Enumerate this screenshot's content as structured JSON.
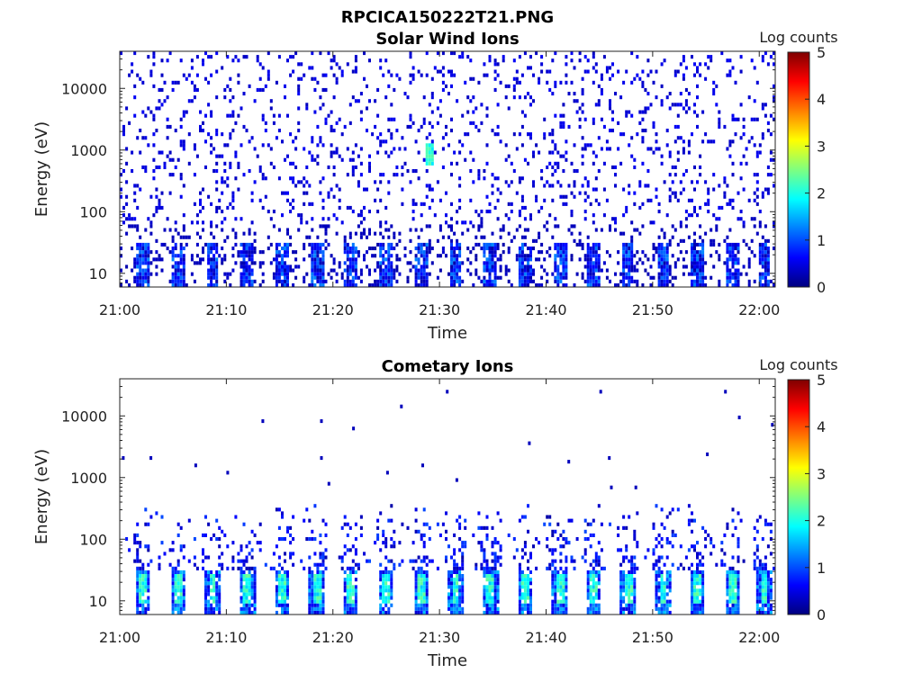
{
  "figure": {
    "suptitle": "RPCICA150222T21.PNG"
  },
  "colors": {
    "jet": [
      "#00007f",
      "#0000ff",
      "#007fff",
      "#00ffff",
      "#7fff7f",
      "#ffff00",
      "#ff7f00",
      "#ff0000",
      "#7f0000"
    ],
    "axis": "#222222",
    "background": "#ffffff"
  },
  "chart_data": [
    {
      "type": "heatmap",
      "title": "Solar Wind Ions",
      "xlabel": "Time",
      "ylabel": "Energy (eV)",
      "colorbar_label": "Log counts",
      "colorbar_ticks": [
        "0",
        "1",
        "2",
        "3",
        "4",
        "5"
      ],
      "colorbar_range": [
        0,
        5
      ],
      "x_tick_labels": [
        "21:00",
        "21:10",
        "21:20",
        "21:30",
        "21:40",
        "21:50",
        "22:00"
      ],
      "x_tick_minutes": [
        0,
        10,
        20,
        30,
        40,
        50,
        60
      ],
      "xlim_minutes": [
        0,
        61.5
      ],
      "y_tick_labels": [
        "10",
        "100",
        "1000",
        "10000"
      ],
      "y_tick_values": [
        10,
        100,
        1000,
        10000
      ],
      "ylim": [
        6,
        40000
      ],
      "y_scale": "log",
      "low_energy_bursts_minutes": [
        2.2,
        5.5,
        8.7,
        12.0,
        15.3,
        18.5,
        21.7,
        25.0,
        28.3,
        31.5,
        34.8,
        38.0,
        41.3,
        44.5,
        47.7,
        51.0,
        54.2,
        57.5,
        60.5
      ],
      "background_noise_log_counts": 0.3,
      "burst_peak_log_counts": 1.3,
      "highlight": {
        "minute": 29.0,
        "energy_range": [
          500,
          1200
        ],
        "log_counts": 2.3
      }
    },
    {
      "type": "heatmap",
      "title": "Cometary Ions",
      "xlabel": "Time",
      "ylabel": "Energy (eV)",
      "colorbar_label": "Log counts",
      "colorbar_ticks": [
        "0",
        "1",
        "2",
        "3",
        "4",
        "5"
      ],
      "colorbar_range": [
        0,
        5
      ],
      "x_tick_labels": [
        "21:00",
        "21:10",
        "21:20",
        "21:30",
        "21:40",
        "21:50",
        "22:00"
      ],
      "x_tick_minutes": [
        0,
        10,
        20,
        30,
        40,
        50,
        60
      ],
      "xlim_minutes": [
        0,
        61.5
      ],
      "y_tick_labels": [
        "10",
        "100",
        "1000",
        "10000"
      ],
      "y_tick_values": [
        10,
        100,
        1000,
        10000
      ],
      "ylim": [
        6,
        40000
      ],
      "y_scale": "log",
      "low_energy_bursts_minutes": [
        2.2,
        5.5,
        8.7,
        12.0,
        15.3,
        18.5,
        21.7,
        25.0,
        28.3,
        31.5,
        34.8,
        38.0,
        41.3,
        44.5,
        47.7,
        51.0,
        54.2,
        57.5,
        60.5
      ],
      "burst_peak_log_counts": 2.4,
      "scattered_high_energy_points": [
        {
          "minute": 0.2,
          "energy": 2000
        },
        {
          "minute": 2.8,
          "energy": 2000
        },
        {
          "minute": 7.0,
          "energy": 1600
        },
        {
          "minute": 10.0,
          "energy": 1250
        },
        {
          "minute": 13.3,
          "energy": 8500
        },
        {
          "minute": 18.8,
          "energy": 8500
        },
        {
          "minute": 18.8,
          "energy": 2000
        },
        {
          "minute": 19.5,
          "energy": 800
        },
        {
          "minute": 21.8,
          "energy": 6500
        },
        {
          "minute": 25.0,
          "energy": 1150
        },
        {
          "minute": 26.3,
          "energy": 13500
        },
        {
          "minute": 28.3,
          "energy": 1500
        },
        {
          "minute": 30.6,
          "energy": 25000
        },
        {
          "minute": 31.5,
          "energy": 950
        },
        {
          "minute": 38.3,
          "energy": 3800
        },
        {
          "minute": 42.0,
          "energy": 1900
        },
        {
          "minute": 45.0,
          "energy": 25000
        },
        {
          "minute": 45.8,
          "energy": 2100
        },
        {
          "minute": 46.0,
          "energy": 650
        },
        {
          "minute": 48.3,
          "energy": 650
        },
        {
          "minute": 55.0,
          "energy": 2300
        },
        {
          "minute": 56.7,
          "energy": 25000
        },
        {
          "minute": 58.0,
          "energy": 10000
        },
        {
          "minute": 61.1,
          "energy": 7000
        }
      ]
    }
  ]
}
